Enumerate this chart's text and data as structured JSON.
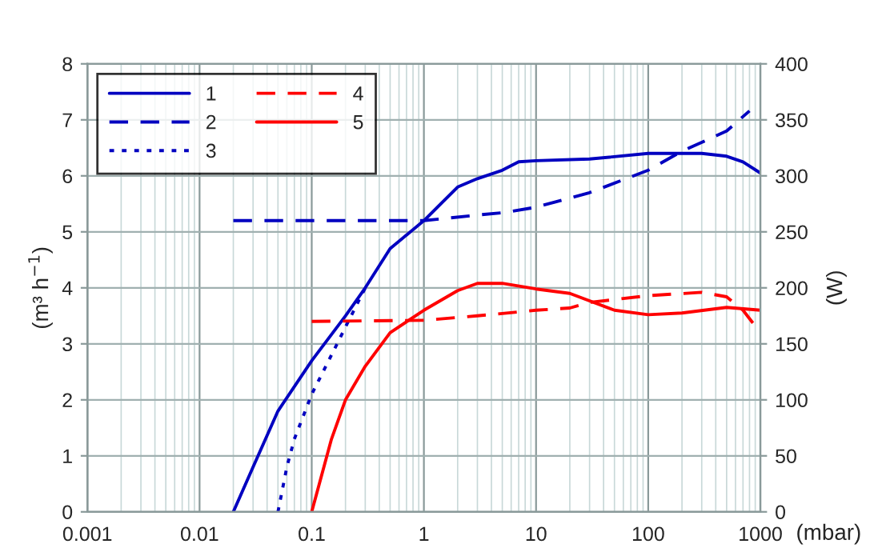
{
  "chart_data": {
    "type": "line",
    "xlabel": "(mbar)",
    "ylabel": "(m³ h$^{−1}$)",
    "y2label": "(W)",
    "log": "x",
    "xlim": [
      0.001,
      1000
    ],
    "xticks": [
      0.001,
      0.01,
      0.1,
      1,
      10,
      100,
      1000
    ],
    "ylim": [
      0,
      8
    ],
    "yticks": [
      0,
      1,
      2,
      3,
      4,
      5,
      6,
      7,
      8
    ],
    "y2lim": [
      0,
      400
    ],
    "y2ticks": [
      0,
      50,
      100,
      150,
      200,
      250,
      300,
      350,
      400
    ],
    "grid": true,
    "legend": "top left",
    "series": [
      {
        "name": "1",
        "color": "#0000c0",
        "line_style": "solid",
        "x": [
          0.02,
          0.03,
          0.05,
          0.1,
          0.2,
          0.3,
          0.5,
          1,
          2,
          3,
          5,
          7,
          10,
          30,
          100,
          200,
          300,
          500,
          700,
          1000
        ],
        "values": [
          0,
          0.8,
          1.8,
          2.7,
          3.5,
          4.0,
          4.7,
          5.2,
          5.8,
          5.95,
          6.1,
          6.25,
          6.27,
          6.3,
          6.4,
          6.4,
          6.4,
          6.35,
          6.25,
          6.05
        ]
      },
      {
        "name": "2",
        "color": "#0000c0",
        "line_style": "dashed",
        "axis": "y2",
        "x": [
          0.02,
          1,
          3,
          5,
          10,
          30,
          100,
          200,
          500,
          800
        ],
        "values": [
          260,
          260,
          265,
          267,
          272,
          285,
          305,
          322,
          340,
          358
        ]
      },
      {
        "name": "3",
        "color": "#0000c0",
        "line_style": "dotted",
        "x": [
          0.05,
          0.06,
          0.07,
          0.1,
          0.15,
          0.2,
          0.3
        ],
        "values": [
          0,
          0.8,
          1.3,
          2.1,
          2.8,
          3.3,
          4.0
        ]
      },
      {
        "name": "4",
        "color": "#ff0000",
        "line_style": "dashed",
        "axis": "y2",
        "x": [
          0.1,
          1,
          3,
          10,
          20,
          30,
          100,
          300,
          500,
          700,
          1000
        ],
        "values": [
          170,
          171,
          175,
          180,
          182,
          187,
          193,
          196,
          192,
          180,
          160
        ]
      },
      {
        "name": "5",
        "color": "#ff0000",
        "line_style": "solid",
        "x": [
          0.1,
          0.15,
          0.2,
          0.3,
          0.5,
          1,
          2,
          3,
          5,
          10,
          20,
          50,
          100,
          200,
          500,
          1000
        ],
        "values": [
          0,
          1.3,
          2.0,
          2.6,
          3.2,
          3.6,
          3.95,
          4.08,
          4.08,
          3.98,
          3.9,
          3.6,
          3.52,
          3.55,
          3.65,
          3.6
        ]
      }
    ]
  }
}
